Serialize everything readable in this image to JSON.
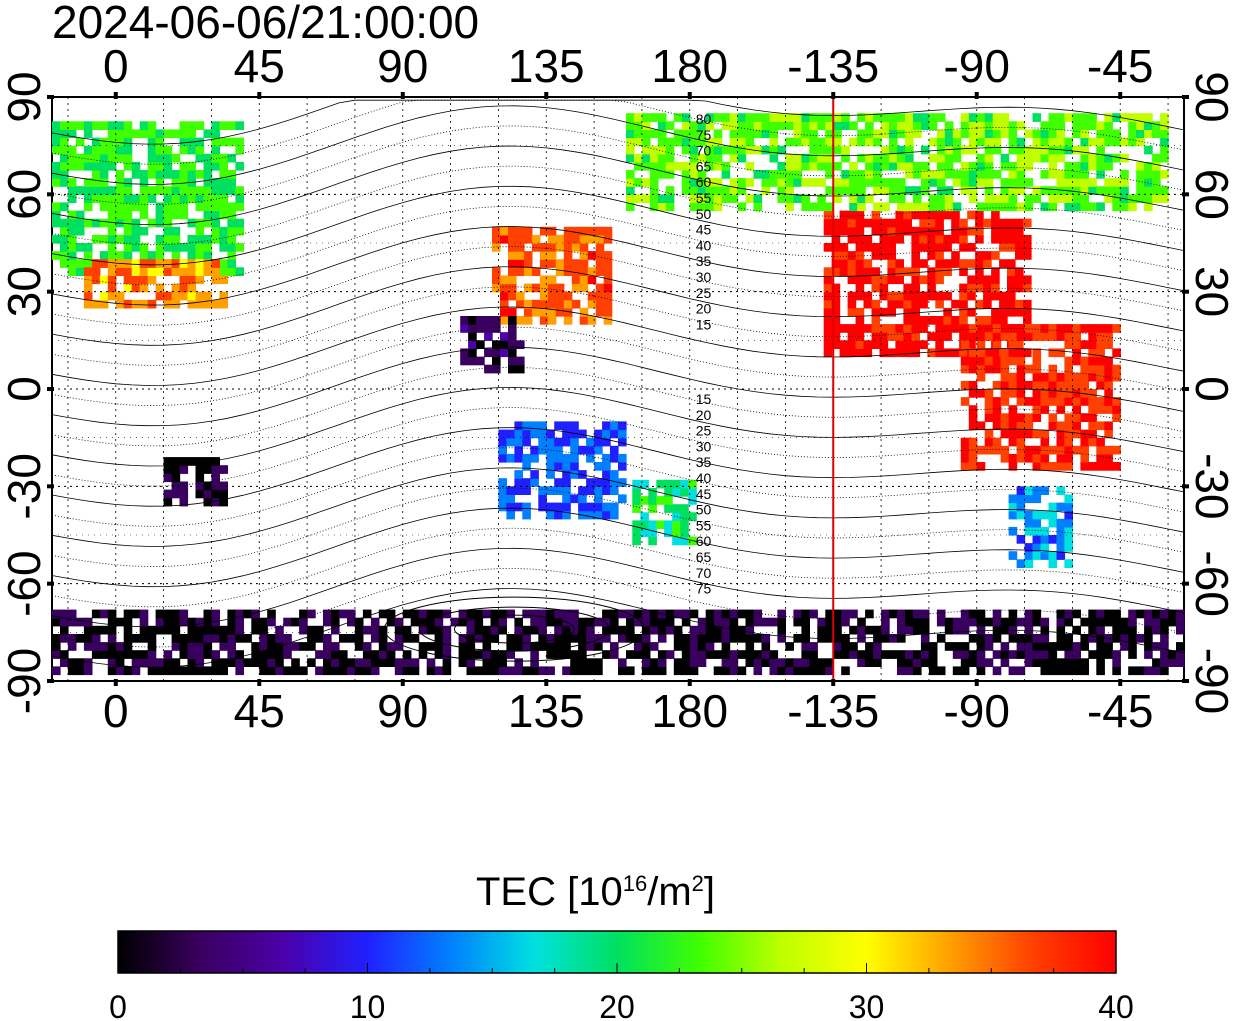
{
  "timestamp": "2024-06-06/21:00:00",
  "map": {
    "lon_ticks": [
      "0",
      "45",
      "90",
      "135",
      "180",
      "-135",
      "-90",
      "-45"
    ],
    "lon_values": [
      0,
      45,
      90,
      135,
      180,
      225,
      270,
      315
    ],
    "lon_range": [
      -20,
      335
    ],
    "lat_ticks": [
      "90",
      "60",
      "30",
      "0",
      "-30",
      "-60",
      "-90"
    ],
    "lat_values": [
      90,
      60,
      30,
      0,
      -30,
      -60,
      -90
    ],
    "terminator_longitude": -135,
    "terminator_color": "#e00000",
    "dip_labels_north": [
      "80",
      "75",
      "70",
      "65",
      "60",
      "55",
      "50",
      "45",
      "40",
      "35",
      "30",
      "25",
      "20",
      "15"
    ],
    "dip_labels_south": [
      "15",
      "20",
      "25",
      "30",
      "35",
      "40",
      "45",
      "50",
      "55",
      "60",
      "65",
      "70",
      "75"
    ]
  },
  "colorbar": {
    "title_main": "TEC  [10",
    "title_exp": "16",
    "title_mid": "/m",
    "title_exp2": "2",
    "title_end": "]",
    "ticks": [
      "0",
      "10",
      "20",
      "30",
      "40"
    ],
    "range": [
      0,
      40
    ],
    "colors": [
      "#000000",
      "#3a0060",
      "#4b00aa",
      "#2020ff",
      "#0080ff",
      "#00e0e0",
      "#00e060",
      "#40ff00",
      "#c0ff00",
      "#ffff00",
      "#ffa000",
      "#ff4000",
      "#ff0000"
    ]
  },
  "tec_regions": [
    {
      "name": "eastern-north-america",
      "value": 40
    },
    {
      "name": "south-america",
      "value": 38
    },
    {
      "name": "southern-south-america",
      "value": 14
    },
    {
      "name": "canada-arctic",
      "value": 24
    },
    {
      "name": "europe",
      "value": 22
    },
    {
      "name": "mediterranean",
      "value": 34
    },
    {
      "name": "east-asia",
      "value": 36
    },
    {
      "name": "southeast-asia",
      "value": 3
    },
    {
      "name": "south-africa",
      "value": 2
    },
    {
      "name": "australia",
      "value": 12
    },
    {
      "name": "new-zealand",
      "value": 20
    },
    {
      "name": "antarctica",
      "value": 1
    }
  ]
}
